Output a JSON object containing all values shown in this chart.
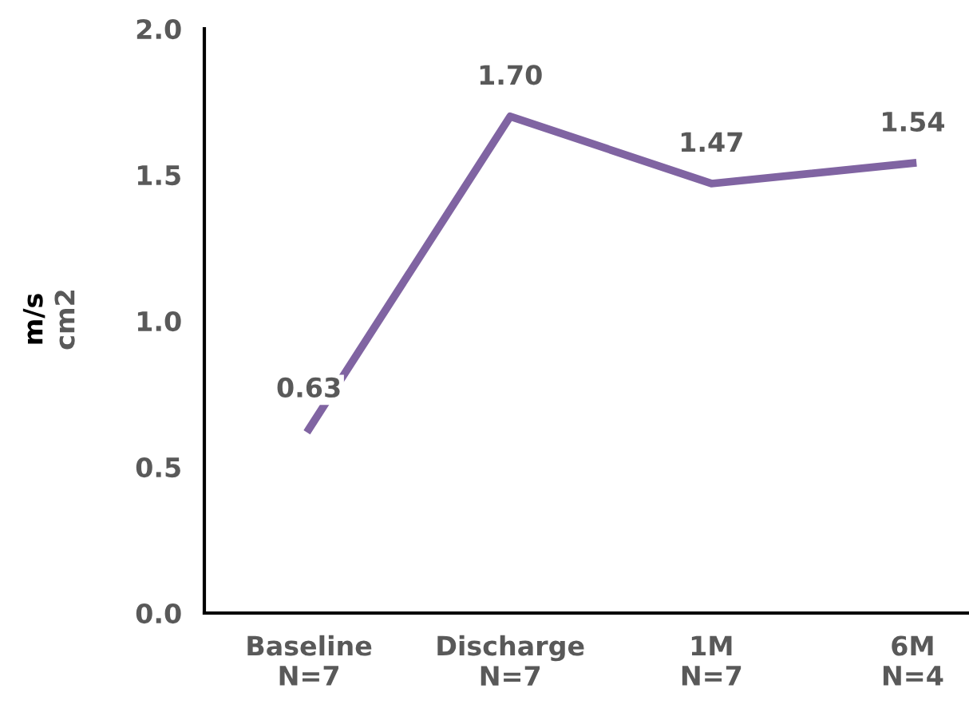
{
  "chart_data": {
    "type": "line",
    "ylabel": "m/s\ncm2",
    "categories": [
      "Baseline\nN=7",
      "Discharge\nN=7",
      "1M\nN=7",
      "6M\nN=4"
    ],
    "series": [
      {
        "color": "#8064a2",
        "values": [
          0.63,
          1.7,
          1.47,
          1.54
        ],
        "value_labels": [
          "0.63",
          "1.70",
          "1.47",
          "1.54"
        ]
      }
    ],
    "ylim": [
      0,
      2
    ],
    "yticks": [
      {
        "value": 0,
        "label": "0.0"
      },
      {
        "value": 0.5,
        "label": "0.5"
      },
      {
        "value": 1,
        "label": "1.0"
      },
      {
        "value": 1.5,
        "label": "1.5"
      },
      {
        "value": 2,
        "label": "2.0"
      }
    ],
    "grid": false,
    "legend": false,
    "marker": "none",
    "line_style": "solid"
  }
}
